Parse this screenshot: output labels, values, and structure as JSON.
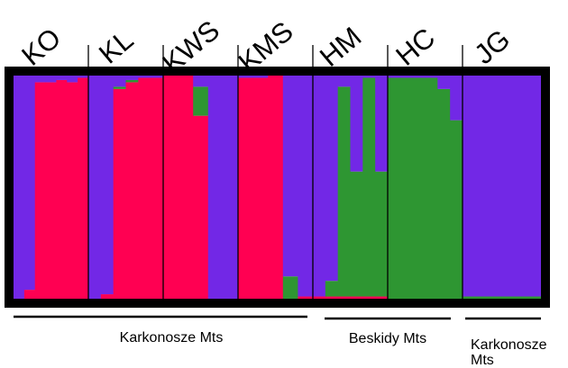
{
  "chart_data": {
    "type": "bar",
    "stacked": true,
    "orientation": "vertical",
    "colors": {
      "red": "#ff0052",
      "purple": "#7228e6",
      "green": "#2e9632",
      "frame": "#000000"
    },
    "populations": [
      {
        "name": "KO",
        "bars": [
          {
            "red": 0.0,
            "green": 0.0,
            "purple": 1.0
          },
          {
            "red": 0.04,
            "green": 0.0,
            "purple": 0.96
          },
          {
            "red": 0.97,
            "green": 0.0,
            "purple": 0.03
          },
          {
            "red": 0.97,
            "green": 0.0,
            "purple": 0.03
          },
          {
            "red": 0.98,
            "green": 0.0,
            "purple": 0.02
          },
          {
            "red": 0.97,
            "green": 0.0,
            "purple": 0.03
          },
          {
            "red": 0.99,
            "green": 0.0,
            "purple": 0.01
          }
        ]
      },
      {
        "name": "KL",
        "bars": [
          {
            "red": 0.0,
            "green": 0.0,
            "purple": 1.0
          },
          {
            "red": 0.02,
            "green": 0.0,
            "purple": 0.98
          },
          {
            "red": 0.94,
            "green": 0.01,
            "purple": 0.05
          },
          {
            "red": 0.97,
            "green": 0.01,
            "purple": 0.02
          },
          {
            "red": 0.99,
            "green": 0.0,
            "purple": 0.01
          },
          {
            "red": 0.99,
            "green": 0.0,
            "purple": 0.01
          }
        ]
      },
      {
        "name": "KWS",
        "bars": [
          {
            "red": 1.0,
            "green": 0.0,
            "purple": 0.0
          },
          {
            "red": 1.0,
            "green": 0.0,
            "purple": 0.0
          },
          {
            "red": 0.82,
            "green": 0.13,
            "purple": 0.05
          },
          {
            "red": 0.0,
            "green": 0.0,
            "purple": 1.0
          },
          {
            "red": 0.0,
            "green": 0.0,
            "purple": 1.0
          }
        ]
      },
      {
        "name": "KMS",
        "bars": [
          {
            "red": 0.99,
            "green": 0.0,
            "purple": 0.01
          },
          {
            "red": 0.99,
            "green": 0.0,
            "purple": 0.01
          },
          {
            "red": 1.0,
            "green": 0.0,
            "purple": 0.0
          },
          {
            "red": 0.0,
            "green": 0.1,
            "purple": 0.9
          },
          {
            "red": 0.01,
            "green": 0.0,
            "purple": 0.99
          }
        ]
      },
      {
        "name": "HM",
        "bars": [
          {
            "red": 0.01,
            "green": 0.0,
            "purple": 0.99
          },
          {
            "red": 0.01,
            "green": 0.07,
            "purple": 0.92
          },
          {
            "red": 0.01,
            "green": 0.94,
            "purple": 0.05
          },
          {
            "red": 0.01,
            "green": 0.56,
            "purple": 0.43
          },
          {
            "red": 0.01,
            "green": 0.98,
            "purple": 0.01
          },
          {
            "red": 0.01,
            "green": 0.56,
            "purple": 0.43
          }
        ]
      },
      {
        "name": "HC",
        "bars": [
          {
            "red": 0.0,
            "green": 0.99,
            "purple": 0.01
          },
          {
            "red": 0.0,
            "green": 0.99,
            "purple": 0.01
          },
          {
            "red": 0.0,
            "green": 0.99,
            "purple": 0.01
          },
          {
            "red": 0.0,
            "green": 0.99,
            "purple": 0.01
          },
          {
            "red": 0.0,
            "green": 0.94,
            "purple": 0.06
          },
          {
            "red": 0.0,
            "green": 0.8,
            "purple": 0.2
          }
        ]
      },
      {
        "name": "JG",
        "bars": [
          {
            "red": 0.0,
            "green": 0.01,
            "purple": 0.99
          },
          {
            "red": 0.0,
            "green": 0.01,
            "purple": 0.99
          },
          {
            "red": 0.0,
            "green": 0.01,
            "purple": 0.99
          },
          {
            "red": 0.0,
            "green": 0.01,
            "purple": 0.99
          }
        ]
      }
    ],
    "regions": [
      {
        "label": "Karkonosze Mts",
        "populations": [
          "KO",
          "KL",
          "KWS",
          "KMS"
        ]
      },
      {
        "label": "Beskidy Mts",
        "populations": [
          "HM",
          "HC"
        ]
      },
      {
        "label": "Karkonosze\nMts",
        "populations": [
          "JG"
        ]
      }
    ],
    "population_boundaries_px": null
  }
}
